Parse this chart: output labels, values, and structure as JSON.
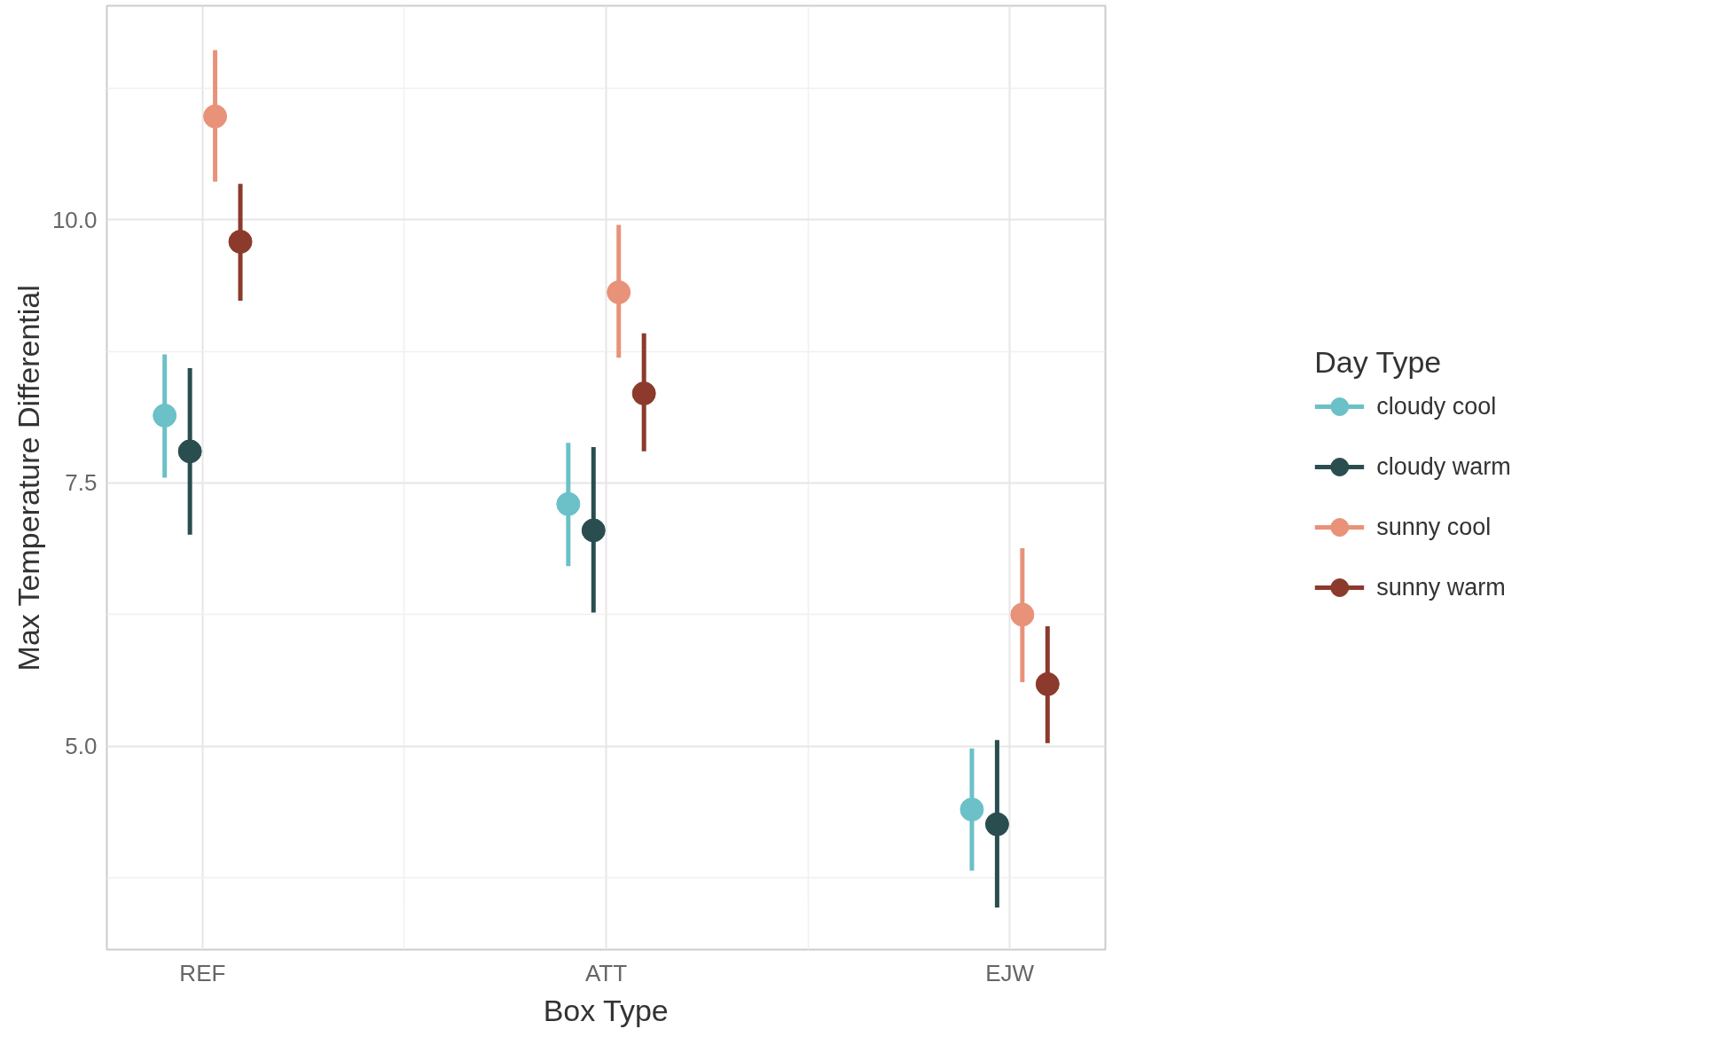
{
  "chart_data": {
    "type": "scatter",
    "xlabel": "Box Type",
    "ylabel": "Max Temperature Differential",
    "legend_title": "Day Type",
    "categories": [
      "REF",
      "ATT",
      "EJW"
    ],
    "ylim": [
      3.07,
      12.03
    ],
    "yticks": [
      {
        "value": 5,
        "label": "5.0"
      },
      {
        "value": 7.5,
        "label": "7.5"
      },
      {
        "value": 10,
        "label": "10.0"
      }
    ],
    "grid": true,
    "legend": "right",
    "marker": "circle",
    "series": [
      {
        "name": "cloudy cool",
        "color": "#6cc0c8",
        "values": [
          8.14,
          7.3,
          4.4
        ],
        "errors": [
          [
            7.55,
            8.72
          ],
          [
            6.71,
            7.88
          ],
          [
            3.82,
            4.98
          ]
        ]
      },
      {
        "name": "cloudy warm",
        "color": "#2a4d4f",
        "values": [
          7.8,
          7.05,
          4.26
        ],
        "errors": [
          [
            7.01,
            8.59
          ],
          [
            6.27,
            7.84
          ],
          [
            3.47,
            5.06
          ]
        ]
      },
      {
        "name": "sunny cool",
        "color": "#e8927a",
        "values": [
          10.98,
          9.31,
          6.25
        ],
        "errors": [
          [
            10.36,
            11.61
          ],
          [
            8.69,
            9.95
          ],
          [
            5.61,
            6.88
          ]
        ]
      },
      {
        "name": "sunny warm",
        "color": "#8b3a2c",
        "values": [
          9.79,
          8.35,
          5.59
        ],
        "errors": [
          [
            9.23,
            10.34
          ],
          [
            7.8,
            8.92
          ],
          [
            5.03,
            6.14
          ]
        ]
      }
    ]
  }
}
